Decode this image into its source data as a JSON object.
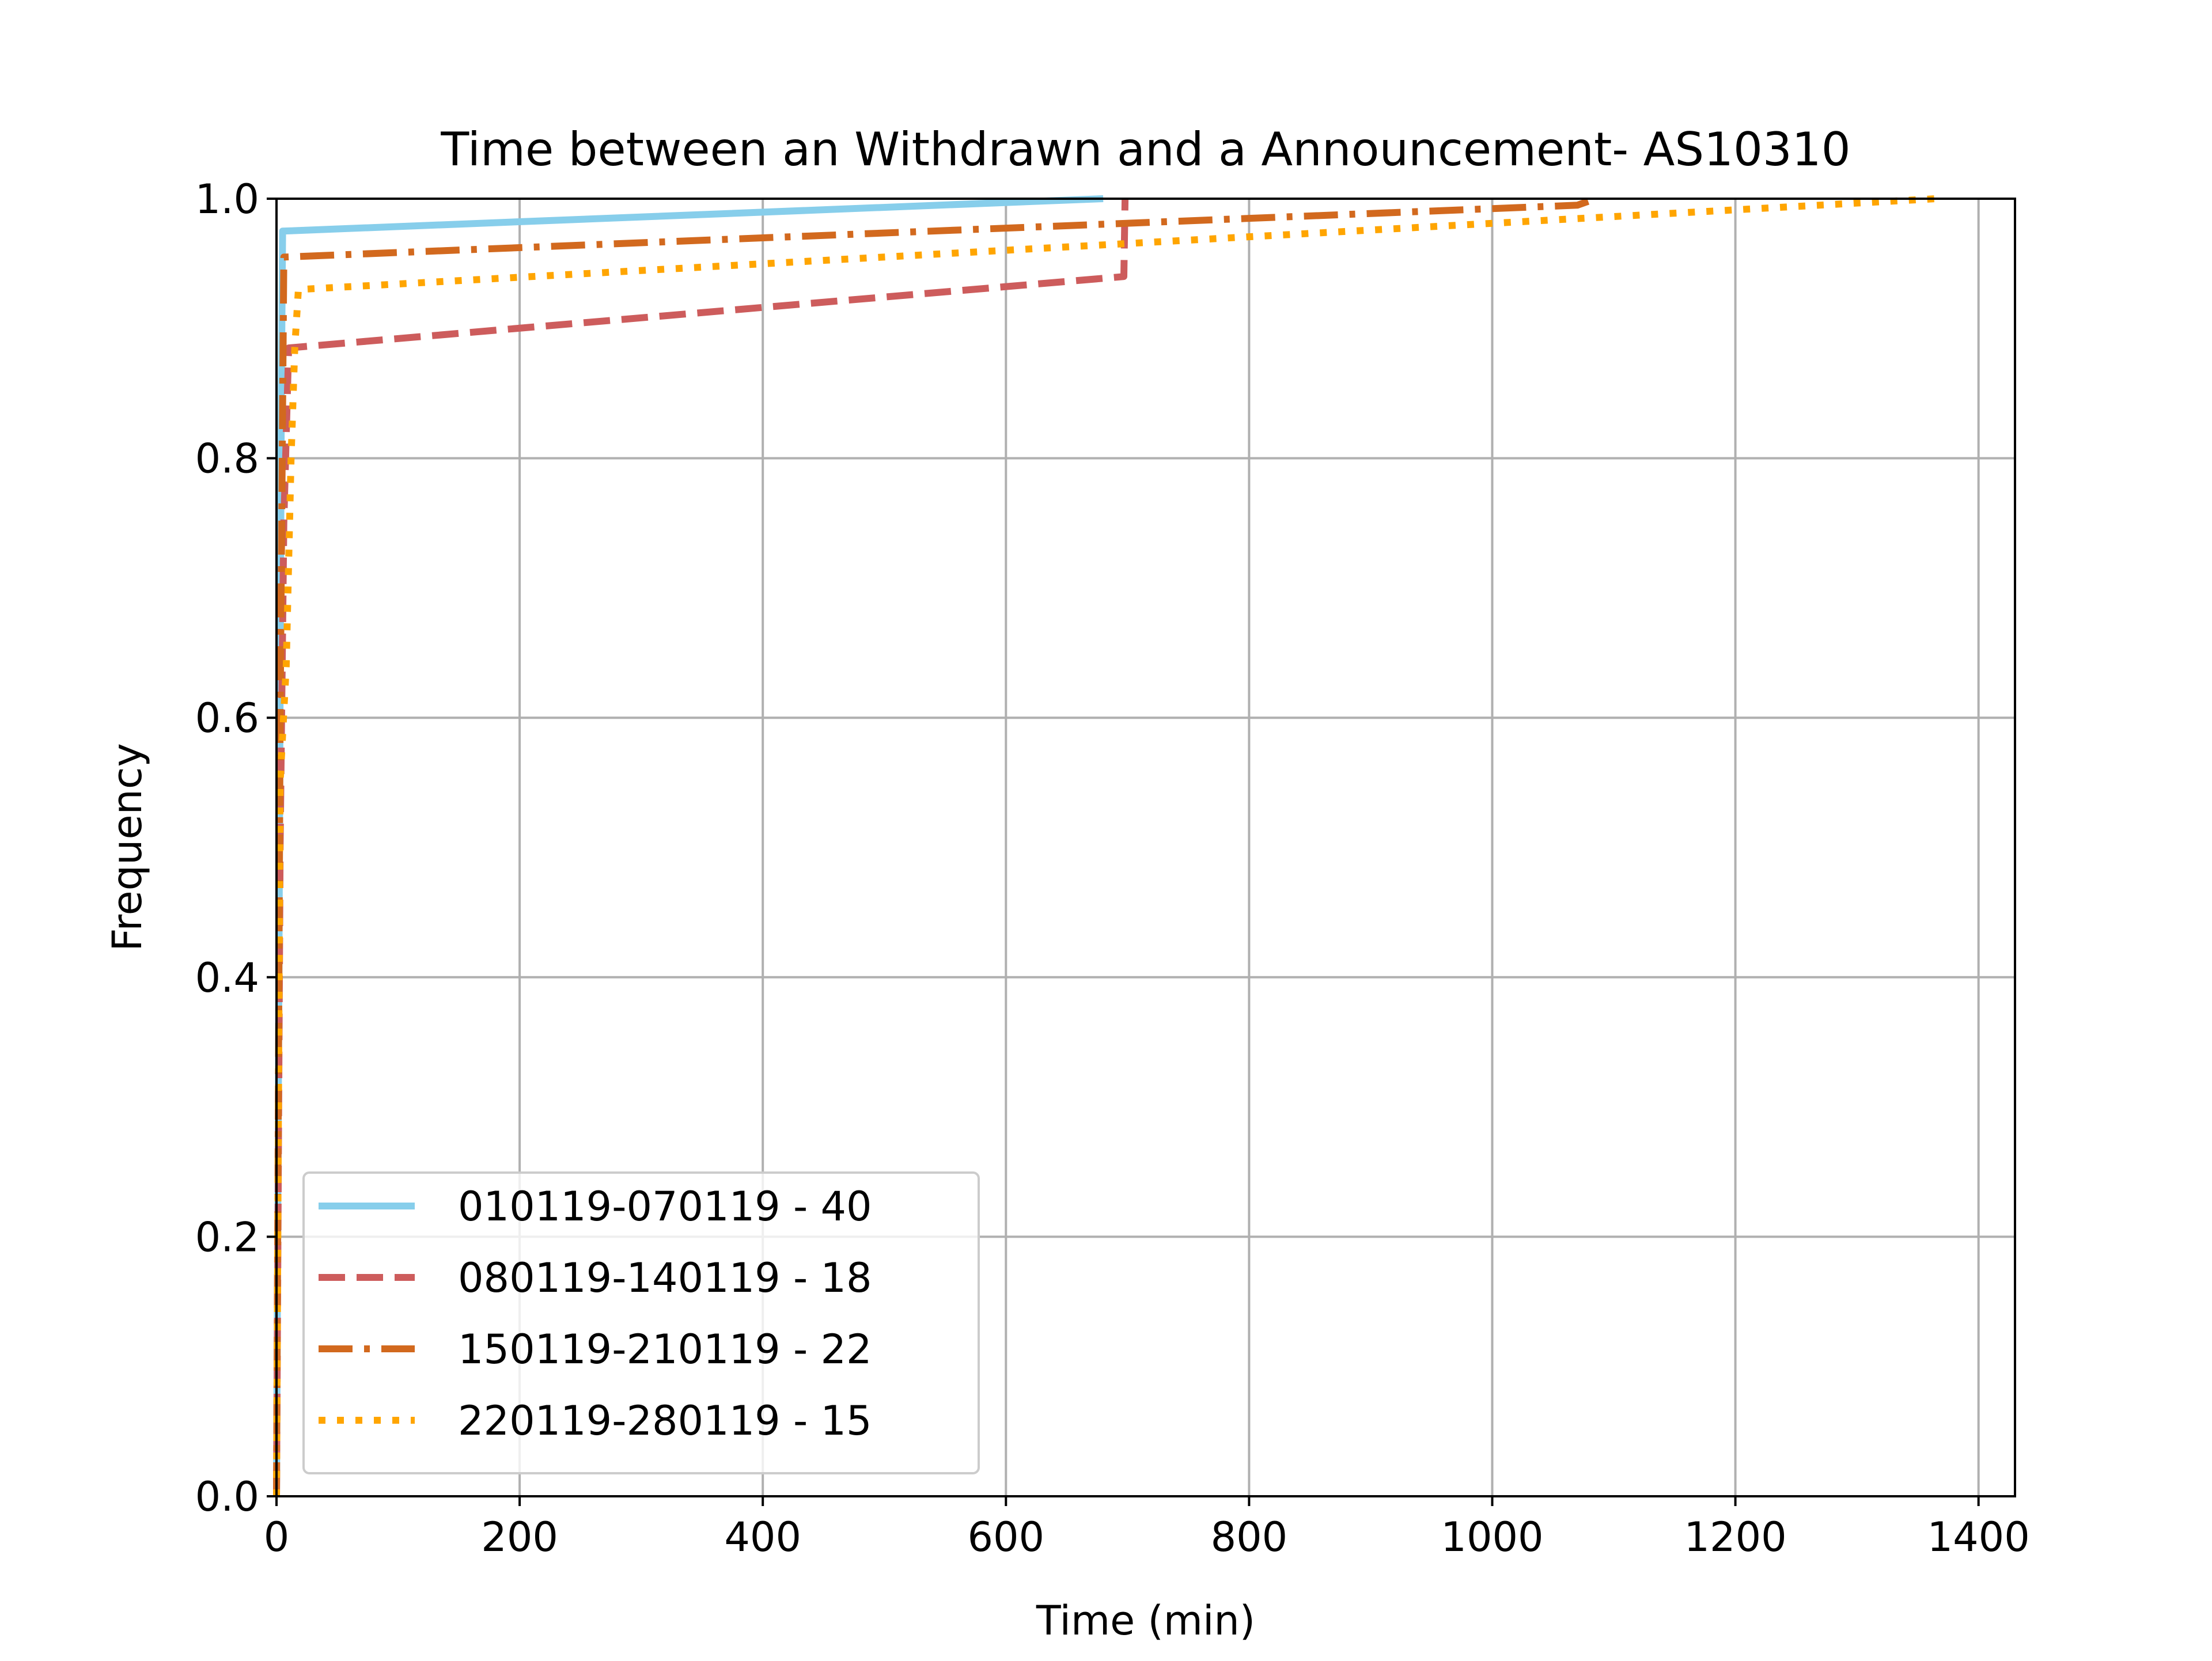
{
  "chart_data": {
    "type": "line",
    "title": "Time between an Withdrawn and a Announcement- AS10310",
    "xlabel": "Time (min)",
    "ylabel": "Frequency",
    "xlim": [
      0,
      1430
    ],
    "ylim": [
      0,
      1.0
    ],
    "xticks": [
      0,
      200,
      400,
      600,
      800,
      1000,
      1200,
      1400
    ],
    "yticks": [
      0.0,
      0.2,
      0.4,
      0.6,
      0.8,
      1.0
    ],
    "xtick_labels": [
      "0",
      "200",
      "400",
      "600",
      "800",
      "1000",
      "1200",
      "1400"
    ],
    "ytick_labels": [
      "0.0",
      "0.2",
      "0.4",
      "0.6",
      "0.8",
      "1.0"
    ],
    "grid": true,
    "legend_position": "lower-left",
    "series": [
      {
        "name": "010119-070119 - 40",
        "color": "#87CEEB",
        "style": "solid",
        "points": [
          [
            0,
            0.0
          ],
          [
            2,
            0.4
          ],
          [
            4,
            0.85
          ],
          [
            5,
            0.975
          ],
          [
            680,
            1.0
          ]
        ]
      },
      {
        "name": "080119-140119 - 18",
        "color": "#CD5C5C",
        "style": "dashed",
        "points": [
          [
            0,
            0.0
          ],
          [
            3,
            0.5
          ],
          [
            6,
            0.75
          ],
          [
            10,
            0.885
          ],
          [
            697,
            0.94
          ],
          [
            698,
            1.0
          ]
        ]
      },
      {
        "name": "150119-210119 - 22",
        "color": "#D2691E",
        "style": "dashdot",
        "points": [
          [
            0,
            0.0
          ],
          [
            3,
            0.6
          ],
          [
            6,
            0.955
          ],
          [
            1070,
            0.995
          ],
          [
            1085,
            1.0
          ]
        ]
      },
      {
        "name": "220119-280119 - 15",
        "color": "#FFA500",
        "style": "dotted",
        "points": [
          [
            0,
            0.0
          ],
          [
            3,
            0.55
          ],
          [
            8,
            0.64
          ],
          [
            12,
            0.8
          ],
          [
            15,
            0.885
          ],
          [
            18,
            0.93
          ],
          [
            1365,
            1.0
          ]
        ]
      }
    ]
  }
}
